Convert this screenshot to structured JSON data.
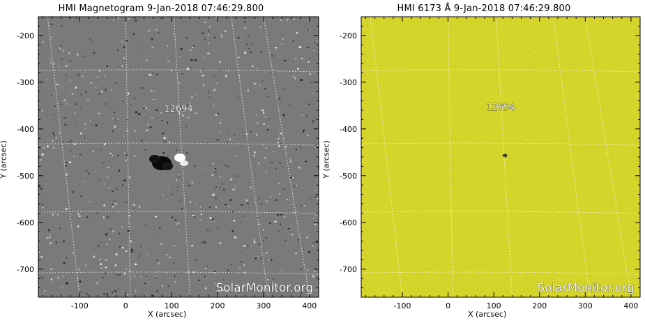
{
  "panels": [
    {
      "title": "HMI Magnetogram   9-Jan-2018 07:46:29.800",
      "region_label": "12694",
      "watermark": "SolarMonitor.org",
      "xlabel": "X (arcsec)",
      "ylabel": "Y (arcsec)",
      "x_ticks": [
        "-100",
        "0",
        "100",
        "200",
        "300",
        "400"
      ],
      "y_ticks": [
        "-200",
        "-300",
        "-400",
        "-500",
        "-600",
        "-700"
      ],
      "background": "#7a7a7a",
      "image_type": "magnetogram"
    },
    {
      "title": "HMI 6173 Å   9-Jan-2018 07:46:29.800",
      "region_label": "12694",
      "watermark": "SolarMonitor.org",
      "xlabel": "X (arcsec)",
      "ylabel": "Y (arcsec)",
      "x_ticks": [
        "-100",
        "0",
        "100",
        "200",
        "300",
        "400"
      ],
      "y_ticks": [
        "-200",
        "-300",
        "-400",
        "-500",
        "-600",
        "-700"
      ],
      "background": "#d4d42a",
      "image_type": "continuum"
    }
  ]
}
